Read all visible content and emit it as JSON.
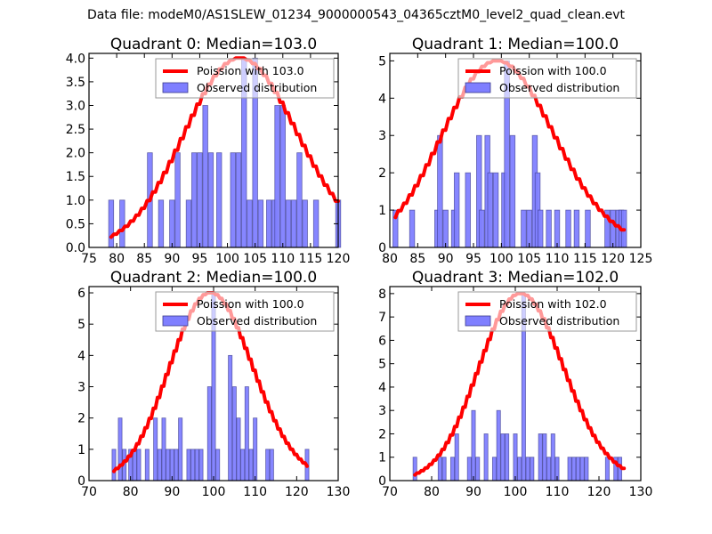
{
  "figure": {
    "suptitle": "Data file: modeM0/AS1SLEW_01234_9000000543_04365cztM0_level2_quad_clean.evt",
    "colors": {
      "poisson_line": "#ff0000",
      "bar_fill": "#7f7fff",
      "bar_edge": "#3a3a8c",
      "legend_border": "#999999"
    }
  },
  "chart_data": [
    {
      "type": "bar",
      "title": "Quadrant 0: Median=103.0",
      "median": 103.0,
      "xlim": [
        75,
        120
      ],
      "ylim": [
        0,
        4.1
      ],
      "xticks": [
        75,
        80,
        85,
        90,
        95,
        100,
        105,
        110,
        115,
        120
      ],
      "yticks": [
        0.0,
        0.5,
        1.0,
        1.5,
        2.0,
        2.5,
        3.0,
        3.5,
        4.0
      ],
      "ytick_format": 1,
      "legend": {
        "position": "top-right",
        "line_label": "Poission with 103.0",
        "bar_label": "Observed distribution"
      },
      "bars": {
        "x": [
          79,
          81,
          86,
          88,
          90,
          91,
          93,
          94,
          95,
          96,
          97,
          98.5,
          101,
          102,
          103,
          104,
          105,
          106,
          107.5,
          108.5,
          109,
          110,
          111,
          112,
          113,
          114,
          116,
          120
        ],
        "values": [
          1,
          1,
          2,
          1,
          1,
          2,
          1,
          2,
          2,
          3,
          2,
          2,
          2,
          2,
          4,
          1,
          4,
          1,
          1,
          1,
          3,
          3,
          1,
          1,
          2,
          1,
          1,
          1
        ]
      },
      "poisson": {
        "mu": 103.0,
        "scale_peak": 4.0,
        "x_range": [
          79,
          120
        ]
      }
    },
    {
      "type": "bar",
      "title": "Quadrant 1: Median=100.0",
      "median": 100.0,
      "xlim": [
        80,
        125
      ],
      "ylim": [
        0,
        5.2
      ],
      "xticks": [
        80,
        85,
        90,
        95,
        100,
        105,
        110,
        115,
        120,
        125
      ],
      "yticks": [
        0,
        1,
        2,
        3,
        4,
        5
      ],
      "ytick_format": 0,
      "legend": {
        "position": "top-right",
        "line_label": "Poission with 100.0",
        "bar_label": "Observed distribution"
      },
      "bars": {
        "x": [
          81,
          84,
          88.5,
          89,
          90,
          91.5,
          92,
          94,
          96,
          96.5,
          97.5,
          98,
          99,
          100.5,
          101,
          102,
          104,
          105,
          106,
          106.5,
          107,
          108.5,
          110,
          112,
          113.5,
          115.5,
          119,
          120,
          121,
          121.5,
          122
        ],
        "values": [
          1,
          1,
          1,
          3,
          1,
          1,
          2,
          2,
          3,
          1,
          3,
          2,
          2,
          2,
          5,
          3,
          1,
          1,
          3,
          2,
          1,
          1,
          1,
          1,
          1,
          1,
          1,
          1,
          1,
          1,
          1
        ]
      },
      "poisson": {
        "mu": 100.0,
        "scale_peak": 5.0,
        "x_range": [
          81,
          122
        ]
      }
    },
    {
      "type": "bar",
      "title": "Quadrant 2: Median=100.0",
      "median": 100.0,
      "xlim": [
        70,
        130
      ],
      "ylim": [
        0,
        6.2
      ],
      "xticks": [
        70,
        80,
        90,
        100,
        110,
        120,
        130
      ],
      "yticks": [
        0,
        1,
        2,
        3,
        4,
        5,
        6
      ],
      "ytick_format": 0,
      "legend": {
        "position": "top-right",
        "line_label": "Poission with 100.0",
        "bar_label": "Observed distribution"
      },
      "bars": {
        "x": [
          76,
          77.5,
          78.5,
          80,
          81,
          82,
          84,
          86,
          87,
          88,
          89,
          90,
          91,
          92,
          94,
          95,
          96,
          97,
          99,
          100,
          101,
          104,
          105,
          106,
          107,
          108,
          109,
          110,
          113,
          114,
          122.5
        ],
        "values": [
          1,
          2,
          1,
          1,
          1,
          1,
          1,
          2,
          1,
          2,
          1,
          1,
          1,
          2,
          1,
          1,
          1,
          1,
          3,
          6,
          1,
          4,
          3,
          2,
          1,
          3,
          1,
          2,
          1,
          1,
          1
        ]
      },
      "poisson": {
        "mu": 100.0,
        "scale_peak": 6.0,
        "x_range": [
          76,
          122.5
        ]
      }
    },
    {
      "type": "bar",
      "title": "Quadrant 3: Median=102.0",
      "median": 102.0,
      "xlim": [
        70,
        130
      ],
      "ylim": [
        0,
        8.3
      ],
      "xticks": [
        70,
        80,
        90,
        100,
        110,
        120,
        130
      ],
      "yticks": [
        0,
        1,
        2,
        3,
        4,
        5,
        6,
        7,
        8
      ],
      "ytick_format": 0,
      "legend": {
        "position": "top-right",
        "line_label": "Poission with 102.0",
        "bar_label": "Observed distribution"
      },
      "bars": {
        "x": [
          76,
          82,
          83,
          85,
          86,
          89,
          90,
          91,
          93,
          95,
          96,
          97,
          98,
          100,
          101,
          102,
          103,
          104,
          106,
          107,
          108,
          109,
          110,
          113,
          114,
          115,
          116,
          117,
          122,
          124,
          125
        ],
        "values": [
          1,
          1,
          1,
          1,
          2,
          1,
          3,
          1,
          2,
          1,
          3,
          2,
          2,
          2,
          1,
          8,
          1,
          1,
          2,
          2,
          1,
          2,
          1,
          1,
          1,
          1,
          1,
          1,
          1,
          1,
          1
        ]
      },
      "poisson": {
        "mu": 102.0,
        "scale_peak": 8.0,
        "x_range": [
          76,
          126
        ]
      }
    }
  ]
}
